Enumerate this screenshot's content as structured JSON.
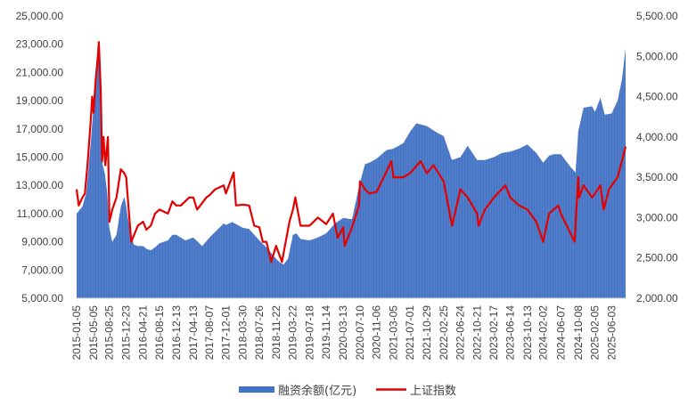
{
  "chart_data": {
    "type": "area+line",
    "title": "",
    "grid": false,
    "legend_position": "bottom",
    "series": [
      {
        "name": "融资余额(亿元)",
        "kind": "area",
        "axis": "left",
        "color": "#4472C4",
        "points": [
          [
            "2015-01-05",
            11000
          ],
          [
            "2015-02-15",
            11500
          ],
          [
            "2015-03-15",
            12500
          ],
          [
            "2015-04-15",
            16000
          ],
          [
            "2015-05-05",
            18500
          ],
          [
            "2015-06-05",
            21700
          ],
          [
            "2015-06-18",
            22700
          ],
          [
            "2015-07-08",
            14500
          ],
          [
            "2015-07-25",
            13800
          ],
          [
            "2015-08-10",
            12500
          ],
          [
            "2015-08-25",
            10000
          ],
          [
            "2015-09-15",
            9000
          ],
          [
            "2015-10-15",
            9500
          ],
          [
            "2015-11-15",
            11500
          ],
          [
            "2015-12-10",
            12200
          ],
          [
            "2015-12-23",
            11500
          ],
          [
            "2016-01-15",
            10000
          ],
          [
            "2016-02-15",
            8800
          ],
          [
            "2016-03-15",
            8700
          ],
          [
            "2016-04-21",
            8700
          ],
          [
            "2016-05-15",
            8500
          ],
          [
            "2016-06-15",
            8400
          ],
          [
            "2016-07-15",
            8600
          ],
          [
            "2016-08-15",
            8900
          ],
          [
            "2016-10-15",
            9100
          ],
          [
            "2016-11-15",
            9500
          ],
          [
            "2016-12-13",
            9500
          ],
          [
            "2017-02-15",
            9100
          ],
          [
            "2017-04-13",
            9300
          ],
          [
            "2017-06-15",
            8700
          ],
          [
            "2017-08-07",
            9300
          ],
          [
            "2017-09-15",
            9700
          ],
          [
            "2017-11-15",
            10300
          ],
          [
            "2017-12-01",
            10200
          ],
          [
            "2018-01-15",
            10400
          ],
          [
            "2018-03-30",
            10000
          ],
          [
            "2018-05-15",
            9900
          ],
          [
            "2018-07-26",
            9100
          ],
          [
            "2018-09-15",
            8600
          ],
          [
            "2018-11-22",
            7800
          ],
          [
            "2018-12-25",
            7500
          ],
          [
            "2019-01-15",
            7400
          ],
          [
            "2019-02-15",
            7800
          ],
          [
            "2019-03-22",
            9500
          ],
          [
            "2019-04-15",
            9600
          ],
          [
            "2019-05-15",
            9200
          ],
          [
            "2019-07-18",
            9100
          ],
          [
            "2019-09-15",
            9300
          ],
          [
            "2019-11-14",
            9600
          ],
          [
            "2020-01-15",
            10300
          ],
          [
            "2020-03-13",
            10700
          ],
          [
            "2020-05-15",
            10600
          ],
          [
            "2020-07-10",
            13200
          ],
          [
            "2020-08-15",
            14500
          ],
          [
            "2020-09-15",
            14600
          ],
          [
            "2020-11-06",
            14900
          ],
          [
            "2021-01-15",
            15500
          ],
          [
            "2021-03-05",
            15600
          ],
          [
            "2021-05-15",
            16000
          ],
          [
            "2021-07-01",
            16800
          ],
          [
            "2021-08-15",
            17400
          ],
          [
            "2021-10-29",
            17200
          ],
          [
            "2022-01-15",
            16700
          ],
          [
            "2022-02-25",
            16500
          ],
          [
            "2022-04-25",
            14800
          ],
          [
            "2022-06-24",
            15000
          ],
          [
            "2022-08-15",
            15800
          ],
          [
            "2022-10-21",
            14800
          ],
          [
            "2022-12-15",
            14800
          ],
          [
            "2023-02-17",
            15000
          ],
          [
            "2023-04-15",
            15300
          ],
          [
            "2023-06-14",
            15400
          ],
          [
            "2023-08-15",
            15600
          ],
          [
            "2023-10-13",
            15900
          ],
          [
            "2023-12-15",
            15300
          ],
          [
            "2024-02-02",
            14600
          ],
          [
            "2024-03-15",
            15100
          ],
          [
            "2024-04-15",
            15200
          ],
          [
            "2024-06-07",
            15200
          ],
          [
            "2024-08-15",
            14300
          ],
          [
            "2024-09-20",
            13900
          ],
          [
            "2024-10-08",
            16800
          ],
          [
            "2024-11-15",
            18500
          ],
          [
            "2025-01-15",
            18600
          ],
          [
            "2025-02-05",
            18200
          ],
          [
            "2025-03-15",
            19200
          ],
          [
            "2025-04-15",
            18000
          ],
          [
            "2025-06-03",
            18100
          ],
          [
            "2025-07-15",
            19000
          ],
          [
            "2025-08-15",
            20500
          ],
          [
            "2025-09-10",
            22700
          ]
        ]
      },
      {
        "name": "上证指数",
        "kind": "line",
        "axis": "right",
        "color": "#E30000",
        "points": [
          [
            "2015-01-05",
            3350
          ],
          [
            "2015-01-20",
            3150
          ],
          [
            "2015-02-15",
            3250
          ],
          [
            "2015-03-05",
            3300
          ],
          [
            "2015-03-25",
            3700
          ],
          [
            "2015-04-15",
            4200
          ],
          [
            "2015-04-25",
            4500
          ],
          [
            "2015-05-05",
            4300
          ],
          [
            "2015-05-20",
            4700
          ],
          [
            "2015-06-05",
            5000
          ],
          [
            "2015-06-12",
            5178
          ],
          [
            "2015-06-25",
            4600
          ],
          [
            "2015-07-05",
            3700
          ],
          [
            "2015-07-15",
            4000
          ],
          [
            "2015-07-28",
            3650
          ],
          [
            "2015-08-15",
            4000
          ],
          [
            "2015-08-26",
            2950
          ],
          [
            "2015-09-15",
            3100
          ],
          [
            "2015-10-15",
            3250
          ],
          [
            "2015-11-15",
            3600
          ],
          [
            "2015-12-10",
            3550
          ],
          [
            "2015-12-23",
            3500
          ],
          [
            "2016-01-10",
            3100
          ],
          [
            "2016-01-28",
            2700
          ],
          [
            "2016-03-15",
            2900
          ],
          [
            "2016-04-21",
            2950
          ],
          [
            "2016-05-15",
            2850
          ],
          [
            "2016-06-15",
            2900
          ],
          [
            "2016-07-15",
            3050
          ],
          [
            "2016-08-15",
            3100
          ],
          [
            "2016-10-15",
            3050
          ],
          [
            "2016-11-15",
            3200
          ],
          [
            "2016-12-13",
            3150
          ],
          [
            "2017-01-15",
            3150
          ],
          [
            "2017-03-15",
            3250
          ],
          [
            "2017-04-13",
            3250
          ],
          [
            "2017-05-10",
            3100
          ],
          [
            "2017-07-15",
            3250
          ],
          [
            "2017-08-07",
            3280
          ],
          [
            "2017-09-15",
            3350
          ],
          [
            "2017-11-15",
            3400
          ],
          [
            "2017-12-01",
            3300
          ],
          [
            "2018-01-25",
            3560
          ],
          [
            "2018-02-10",
            3150
          ],
          [
            "2018-03-30",
            3160
          ],
          [
            "2018-05-15",
            3150
          ],
          [
            "2018-06-20",
            2900
          ],
          [
            "2018-07-26",
            2880
          ],
          [
            "2018-08-20",
            2700
          ],
          [
            "2018-09-15",
            2700
          ],
          [
            "2018-10-19",
            2450
          ],
          [
            "2018-11-22",
            2650
          ],
          [
            "2019-01-03",
            2450
          ],
          [
            "2019-02-25",
            2950
          ],
          [
            "2019-03-22",
            3100
          ],
          [
            "2019-04-08",
            3250
          ],
          [
            "2019-05-15",
            2900
          ],
          [
            "2019-07-18",
            2900
          ],
          [
            "2019-09-15",
            3000
          ],
          [
            "2019-11-14",
            2920
          ],
          [
            "2019-12-31",
            3050
          ],
          [
            "2020-02-03",
            2750
          ],
          [
            "2020-03-13",
            2880
          ],
          [
            "2020-03-23",
            2650
          ],
          [
            "2020-05-15",
            2880
          ],
          [
            "2020-07-03",
            3150
          ],
          [
            "2020-07-10",
            3450
          ],
          [
            "2020-08-15",
            3350
          ],
          [
            "2020-09-15",
            3300
          ],
          [
            "2020-11-06",
            3320
          ],
          [
            "2021-01-15",
            3570
          ],
          [
            "2021-02-18",
            3700
          ],
          [
            "2021-03-05",
            3500
          ],
          [
            "2021-05-15",
            3500
          ],
          [
            "2021-07-01",
            3550
          ],
          [
            "2021-09-15",
            3700
          ],
          [
            "2021-10-29",
            3550
          ],
          [
            "2021-12-15",
            3650
          ],
          [
            "2022-02-25",
            3450
          ],
          [
            "2022-04-26",
            2900
          ],
          [
            "2022-06-24",
            3350
          ],
          [
            "2022-08-15",
            3250
          ],
          [
            "2022-10-21",
            3050
          ],
          [
            "2022-10-31",
            2900
          ],
          [
            "2022-12-15",
            3100
          ],
          [
            "2023-02-17",
            3250
          ],
          [
            "2023-05-10",
            3400
          ],
          [
            "2023-06-14",
            3250
          ],
          [
            "2023-08-15",
            3150
          ],
          [
            "2023-10-13",
            3100
          ],
          [
            "2023-12-15",
            2950
          ],
          [
            "2024-02-02",
            2700
          ],
          [
            "2024-03-15",
            3050
          ],
          [
            "2024-05-20",
            3150
          ],
          [
            "2024-06-07",
            3050
          ],
          [
            "2024-09-13",
            2700
          ],
          [
            "2024-10-08",
            3500
          ],
          [
            "2024-10-15",
            3250
          ],
          [
            "2024-11-15",
            3400
          ],
          [
            "2025-01-15",
            3250
          ],
          [
            "2025-02-05",
            3300
          ],
          [
            "2025-03-15",
            3400
          ],
          [
            "2025-04-07",
            3100
          ],
          [
            "2025-05-15",
            3350
          ],
          [
            "2025-06-03",
            3400
          ],
          [
            "2025-07-15",
            3500
          ],
          [
            "2025-08-15",
            3700
          ],
          [
            "2025-09-10",
            3880
          ]
        ]
      }
    ],
    "y_left": {
      "min": 5000,
      "max": 25000,
      "ticks": [
        "5,000.00",
        "7,000.00",
        "9,000.00",
        "11,000.00",
        "13,000.00",
        "15,000.00",
        "17,000.00",
        "19,000.00",
        "21,000.00",
        "23,000.00",
        "25,000.00"
      ],
      "tick_values": [
        5000,
        7000,
        9000,
        11000,
        13000,
        15000,
        17000,
        19000,
        21000,
        23000,
        25000
      ]
    },
    "y_right": {
      "min": 2000,
      "max": 5500,
      "ticks": [
        "2,000.00",
        "2,500.00",
        "3,000.00",
        "3,500.00",
        "4,000.00",
        "4,500.00",
        "5,000.00",
        "5,500.00"
      ],
      "tick_values": [
        2000,
        2500,
        3000,
        3500,
        4000,
        4500,
        5000,
        5500
      ]
    },
    "x_axis": {
      "start": "2015-01-05",
      "end": "2025-09-10",
      "tick_labels": [
        "2015-01-05",
        "2015-05-05",
        "2015-08-25",
        "2015-12-23",
        "2016-04-21",
        "2016-08-15",
        "2016-12-13",
        "2017-04-13",
        "2017-08-07",
        "2017-12-01",
        "2018-03-30",
        "2018-07-26",
        "2018-11-22",
        "2019-03-22",
        "2019-07-18",
        "2019-11-14",
        "2020-03-13",
        "2020-07-10",
        "2020-11-06",
        "2021-03-05",
        "2021-07-01",
        "2021-10-29",
        "2022-02-25",
        "2022-06-24",
        "2022-10-21",
        "2023-02-17",
        "2023-06-14",
        "2023-10-13",
        "2024-02-02",
        "2024-06-07",
        "2024-10-08",
        "2025-02-05",
        "2025-06-03"
      ]
    }
  }
}
